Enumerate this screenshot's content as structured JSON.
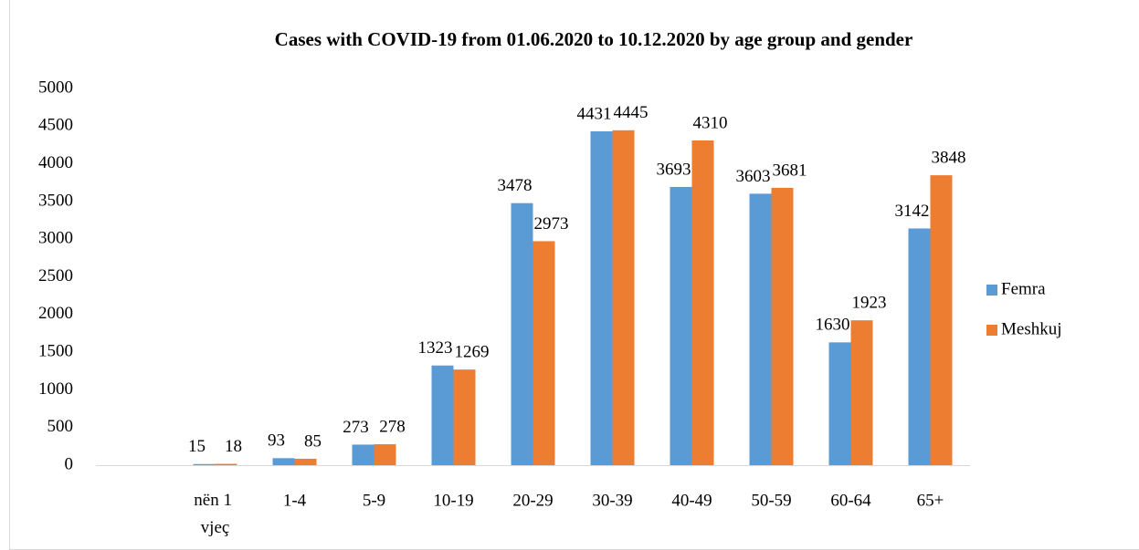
{
  "chart_data": {
    "type": "bar",
    "title": "Cases with COVID-19 from 01.06.2020 to 10.12.2020 by age group and gender",
    "categories": [
      null,
      "nën 1 vjeç",
      "1-4",
      "5-9",
      "10-19",
      "20-29",
      "30-39",
      "40-49",
      "50-59",
      "60-64",
      "65+"
    ],
    "series": [
      {
        "name": "Femra",
        "color": "#5b9bd5",
        "values": [
          null,
          15,
          93,
          273,
          1323,
          3478,
          4431,
          3693,
          3603,
          1630,
          3142
        ]
      },
      {
        "name": "Meshkuj",
        "color": "#ed7d31",
        "values": [
          null,
          18,
          85,
          278,
          1269,
          2973,
          4445,
          4310,
          3681,
          1923,
          3848
        ]
      }
    ],
    "ylim": [
      0,
      5000
    ],
    "yticks": [
      0,
      500,
      1000,
      1500,
      2000,
      2500,
      3000,
      3500,
      4000,
      4500,
      5000
    ],
    "grid": false,
    "legend": "right"
  }
}
